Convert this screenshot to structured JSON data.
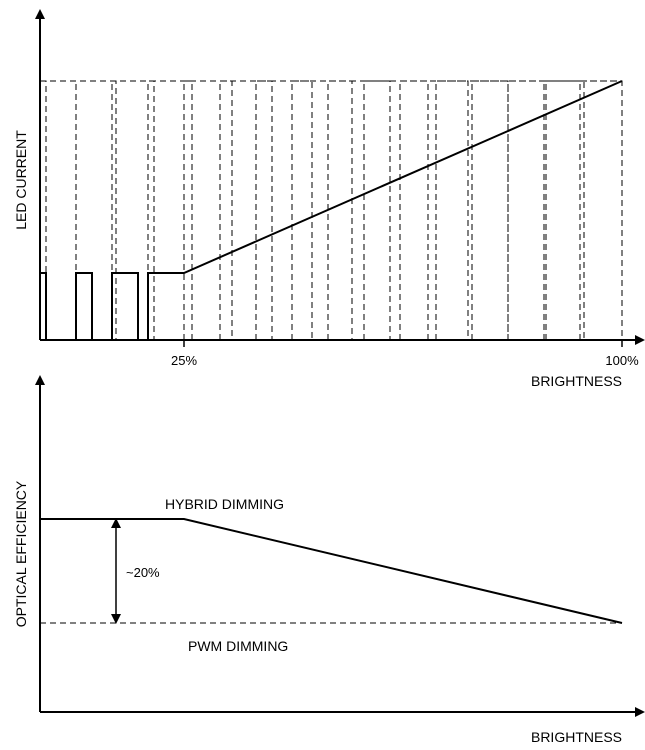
{
  "top_panel": {
    "y_axis_label": "LED CURRENT",
    "x_axis_label": "BRIGHTNESS",
    "tick_25": "25%",
    "tick_100": "100%"
  },
  "bottom_panel": {
    "y_axis_label": "OPTICAL EFFICIENCY",
    "x_axis_label": "BRIGHTNESS",
    "hybrid_label": "HYBRID DIMMING",
    "pwm_label": "PWM DIMMING",
    "gap_label": "~20%"
  }
}
